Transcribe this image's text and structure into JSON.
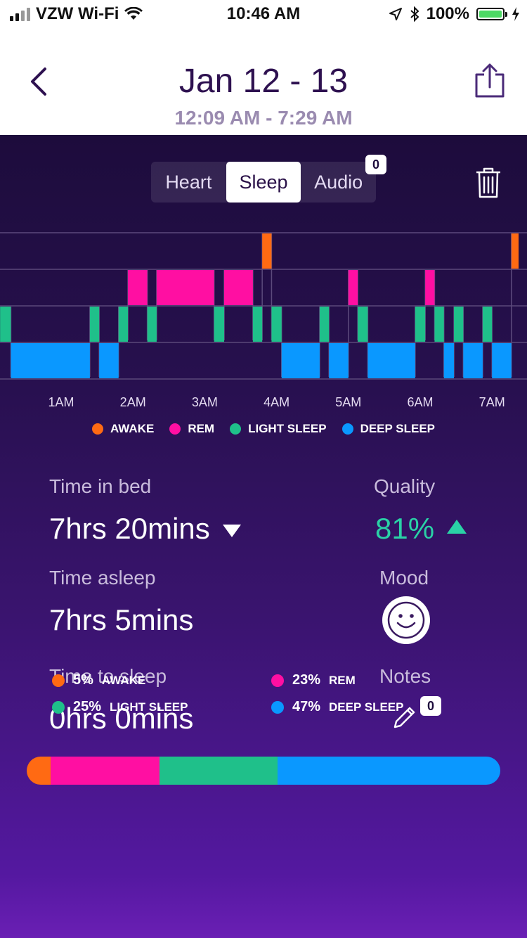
{
  "status_bar": {
    "carrier": "VZW Wi-Fi",
    "time": "10:46 AM",
    "battery": "100%"
  },
  "header": {
    "title": "Jan 12 - 13",
    "subtitle": "12:09 AM - 7:29 AM"
  },
  "tabs": [
    {
      "label": "Heart",
      "active": false
    },
    {
      "label": "Sleep",
      "active": true
    },
    {
      "label": "Audio",
      "active": false,
      "badge": "0"
    }
  ],
  "colors": {
    "awake": "#ff6a13",
    "rem": "#ff0fa2",
    "light": "#1fc08a",
    "deep": "#0a98ff",
    "quality": "#2ad2a6"
  },
  "chart_data": {
    "type": "hypnogram",
    "stages": [
      "DEEP SLEEP",
      "LIGHT SLEEP",
      "REM",
      "AWAKE"
    ],
    "x_ticks": [
      "1AM",
      "2AM",
      "3AM",
      "4AM",
      "5AM",
      "6AM",
      "7AM"
    ],
    "legend": [
      {
        "key": "awake",
        "label": "AWAKE"
      },
      {
        "key": "rem",
        "label": "REM"
      },
      {
        "key": "light",
        "label": "LIGHT SLEEP"
      },
      {
        "key": "deep",
        "label": "DEEP SLEEP"
      }
    ],
    "segments": [
      {
        "stage": "light",
        "start": 0.15,
        "end": 0.3
      },
      {
        "stage": "deep",
        "start": 0.3,
        "end": 1.4
      },
      {
        "stage": "light",
        "start": 1.4,
        "end": 1.53
      },
      {
        "stage": "deep",
        "start": 1.53,
        "end": 1.8
      },
      {
        "stage": "light",
        "start": 1.8,
        "end": 1.93
      },
      {
        "stage": "rem",
        "start": 1.93,
        "end": 2.2
      },
      {
        "stage": "light",
        "start": 2.2,
        "end": 2.33
      },
      {
        "stage": "rem",
        "start": 2.33,
        "end": 3.13
      },
      {
        "stage": "light",
        "start": 3.13,
        "end": 3.27
      },
      {
        "stage": "rem",
        "start": 3.27,
        "end": 3.67
      },
      {
        "stage": "light",
        "start": 3.67,
        "end": 3.8
      },
      {
        "stage": "awake",
        "start": 3.8,
        "end": 3.93
      },
      {
        "stage": "light",
        "start": 3.93,
        "end": 4.07
      },
      {
        "stage": "deep",
        "start": 4.07,
        "end": 4.6
      },
      {
        "stage": "light",
        "start": 4.6,
        "end": 4.73
      },
      {
        "stage": "deep",
        "start": 4.73,
        "end": 5.0
      },
      {
        "stage": "rem",
        "start": 5.0,
        "end": 5.13
      },
      {
        "stage": "light",
        "start": 5.13,
        "end": 5.27
      },
      {
        "stage": "deep",
        "start": 5.27,
        "end": 5.93
      },
      {
        "stage": "light",
        "start": 5.93,
        "end": 6.07
      },
      {
        "stage": "rem",
        "start": 6.07,
        "end": 6.2
      },
      {
        "stage": "light",
        "start": 6.2,
        "end": 6.33
      },
      {
        "stage": "deep",
        "start": 6.33,
        "end": 6.47
      },
      {
        "stage": "light",
        "start": 6.47,
        "end": 6.6
      },
      {
        "stage": "deep",
        "start": 6.6,
        "end": 6.87
      },
      {
        "stage": "light",
        "start": 6.87,
        "end": 7.0
      },
      {
        "stage": "deep",
        "start": 7.0,
        "end": 7.27
      },
      {
        "stage": "awake",
        "start": 7.27,
        "end": 7.37
      }
    ]
  },
  "stats": {
    "time_in_bed": {
      "label": "Time in bed",
      "value": "7hrs 20mins"
    },
    "time_asleep": {
      "label": "Time asleep",
      "value": "7hrs 5mins"
    },
    "time_to_sleep": {
      "label": "Time to sleep",
      "value": "0hrs 0mins"
    },
    "quality": {
      "label": "Quality",
      "value": "81%"
    },
    "mood": {
      "label": "Mood",
      "icon": "smiley-face-icon"
    },
    "notes": {
      "label": "Notes",
      "badge": "0"
    }
  },
  "breakdown": [
    {
      "key": "awake",
      "pct": 5,
      "pct_label": "5%",
      "label": "AWAKE"
    },
    {
      "key": "rem",
      "pct": 23,
      "pct_label": "23%",
      "label": "REM"
    },
    {
      "key": "light",
      "pct": 25,
      "pct_label": "25%",
      "label": "LIGHT SLEEP"
    },
    {
      "key": "deep",
      "pct": 47,
      "pct_label": "47%",
      "label": "DEEP SLEEP"
    }
  ]
}
